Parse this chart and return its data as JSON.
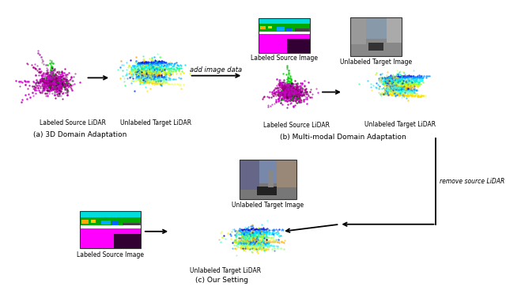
{
  "bg_color": "#ffffff",
  "sections": {
    "a_label": "(a) 3D Domain Adaptation",
    "b_label": "(b) Multi-modal Domain Adaptation",
    "c_label": "(c) Our Setting"
  },
  "text_labels": {
    "labeled_source_lidar_a": "Labeled Source LiDAR",
    "unlabeled_target_lidar_a": "Unlabeled Target LiDAR",
    "add_image_data": "add image data",
    "labeled_source_image_b": "Labeled Source Image",
    "unlabeled_target_image_b": "Unlabeled Target Image",
    "labeled_source_lidar_b": "Labeled Source LiDAR",
    "unlabeled_target_lidar_b": "Unlabeled Target LiDAR",
    "remove_source_lidar": "remove source LiDAR",
    "unlabeled_target_image_c": "Unlabeled Target Image",
    "labeled_source_image_c": "Labeled Source Image",
    "unlabeled_target_lidar_c": "Unlabeled Target LiDAR"
  }
}
